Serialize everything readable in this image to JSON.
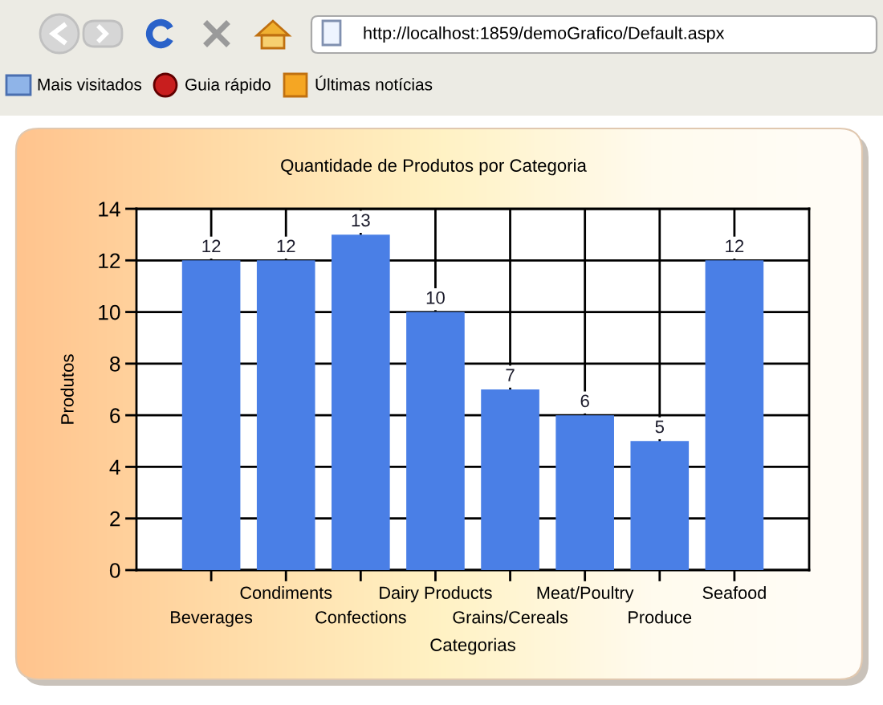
{
  "chart_data": {
    "type": "bar",
    "title": "Quantidade de Produtos por Categoria",
    "xlabel": "Categorias",
    "ylabel": "Produtos",
    "categories": [
      "Beverages",
      "Condiments",
      "Confections",
      "Dairy Products",
      "Grains/Cereals",
      "Meat/Poultry",
      "Produce",
      "Seafood"
    ],
    "values": [
      12,
      12,
      13,
      10,
      7,
      6,
      5,
      12
    ],
    "color": "#4a7fe6",
    "ylim": [
      0,
      14
    ],
    "yticks": [
      0,
      2,
      4,
      6,
      8,
      10,
      12,
      14
    ],
    "grid": true,
    "data_labels": true,
    "annotations": [
      "http://localhost:1859/demoGrafico/Default.aspx",
      "Mais visitados",
      "Guia rápido",
      "Últimas notícias"
    ]
  }
}
